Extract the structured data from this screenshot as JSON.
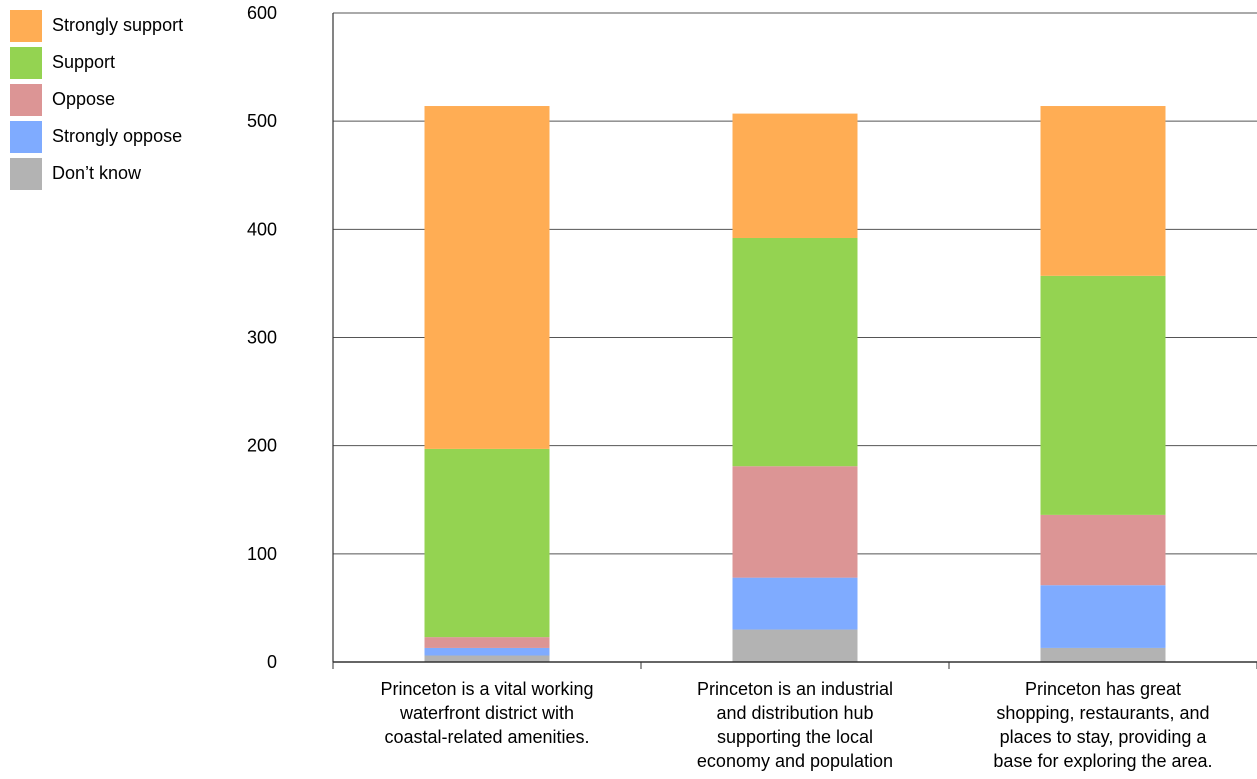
{
  "chart_data": {
    "type": "bar",
    "stacked": true,
    "categories": [
      "Princeton is a vital working waterfront district with coastal-related amenities.",
      "Princeton is an industrial and distribution hub supporting the local economy and population",
      "Princeton has great shopping, restaurants, and places to stay, providing a base for exploring the area."
    ],
    "category_lines": [
      [
        "Princeton is a vital working",
        "waterfront district with",
        "coastal-related amenities."
      ],
      [
        "Princeton is an industrial",
        "and distribution hub",
        "supporting the local",
        "economy and population"
      ],
      [
        "Princeton has great",
        "shopping, restaurants, and",
        "places to stay, providing a",
        "base for exploring the area."
      ]
    ],
    "series": [
      {
        "name": "Don’t know",
        "color": "#b3b3b3",
        "values": [
          6,
          30,
          13
        ]
      },
      {
        "name": "Strongly oppose",
        "color": "#7fabff",
        "values": [
          7,
          48,
          58
        ]
      },
      {
        "name": "Oppose",
        "color": "#dc9595",
        "values": [
          10,
          103,
          65
        ]
      },
      {
        "name": "Support",
        "color": "#94d351",
        "values": [
          174,
          211,
          221
        ]
      },
      {
        "name": "Strongly support",
        "color": "#ffad54",
        "values": [
          317,
          115,
          157
        ]
      }
    ],
    "legend_order": [
      "Strongly support",
      "Support",
      "Oppose",
      "Strongly oppose",
      "Don’t know"
    ],
    "legend_position": "top-left",
    "yticks": [
      0,
      100,
      200,
      300,
      400,
      500,
      600
    ],
    "ylim": [
      0,
      600
    ],
    "grid": true
  }
}
